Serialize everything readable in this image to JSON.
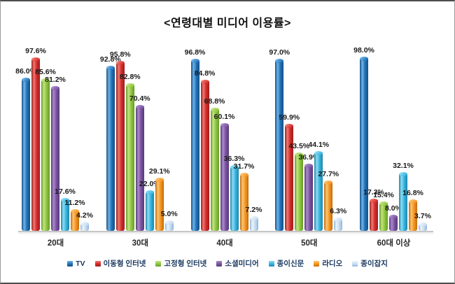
{
  "title": "<연령대별 미디어 이용률>",
  "chart_data": {
    "type": "bar",
    "title": "연령대별 미디어 이용률",
    "categories": [
      "20대",
      "30대",
      "40대",
      "50대",
      "60대 이상"
    ],
    "series": [
      {
        "name": "TV",
        "color": "#1F72B8",
        "light": "#6FB3E8",
        "dark": "#174F85",
        "values": [
          86.0,
          92.8,
          96.8,
          97.0,
          98.0
        ]
      },
      {
        "name": "이동형 인터넷",
        "color": "#D32B2B",
        "light": "#EE796F",
        "dark": "#9C1E1E",
        "values": [
          97.6,
          95.8,
          84.8,
          59.9,
          17.3
        ]
      },
      {
        "name": "고정형 인터넷",
        "color": "#8DC63F",
        "light": "#C4E383",
        "dark": "#679B27",
        "values": [
          85.6,
          82.8,
          68.8,
          43.5,
          15.4
        ]
      },
      {
        "name": "소셜미디어",
        "color": "#7A52A1",
        "light": "#A98CC9",
        "dark": "#573A78",
        "values": [
          81.2,
          70.4,
          60.1,
          36.9,
          8.0
        ]
      },
      {
        "name": "종이신문",
        "color": "#35B4DE",
        "light": "#8EDCF4",
        "dark": "#1F85A8",
        "values": [
          17.6,
          22.0,
          36.3,
          44.1,
          32.1
        ]
      },
      {
        "name": "라디오",
        "color": "#F6941E",
        "light": "#FCC573",
        "dark": "#BF6E10",
        "values": [
          11.2,
          29.1,
          31.7,
          27.7,
          16.8
        ]
      },
      {
        "name": "종이잡지",
        "color": "#C6DCF2",
        "light": "#EDF5FC",
        "dark": "#93B6D6",
        "values": [
          4.2,
          5.0,
          7.2,
          6.3,
          3.7
        ]
      }
    ],
    "value_suffix": "%",
    "ylim": [
      0,
      100
    ],
    "grid": false,
    "legend_position": "bottom",
    "axis_line_color": "#c6c6c6",
    "label_color": "#1a1a1a",
    "legend_text_color": "#17365D"
  }
}
